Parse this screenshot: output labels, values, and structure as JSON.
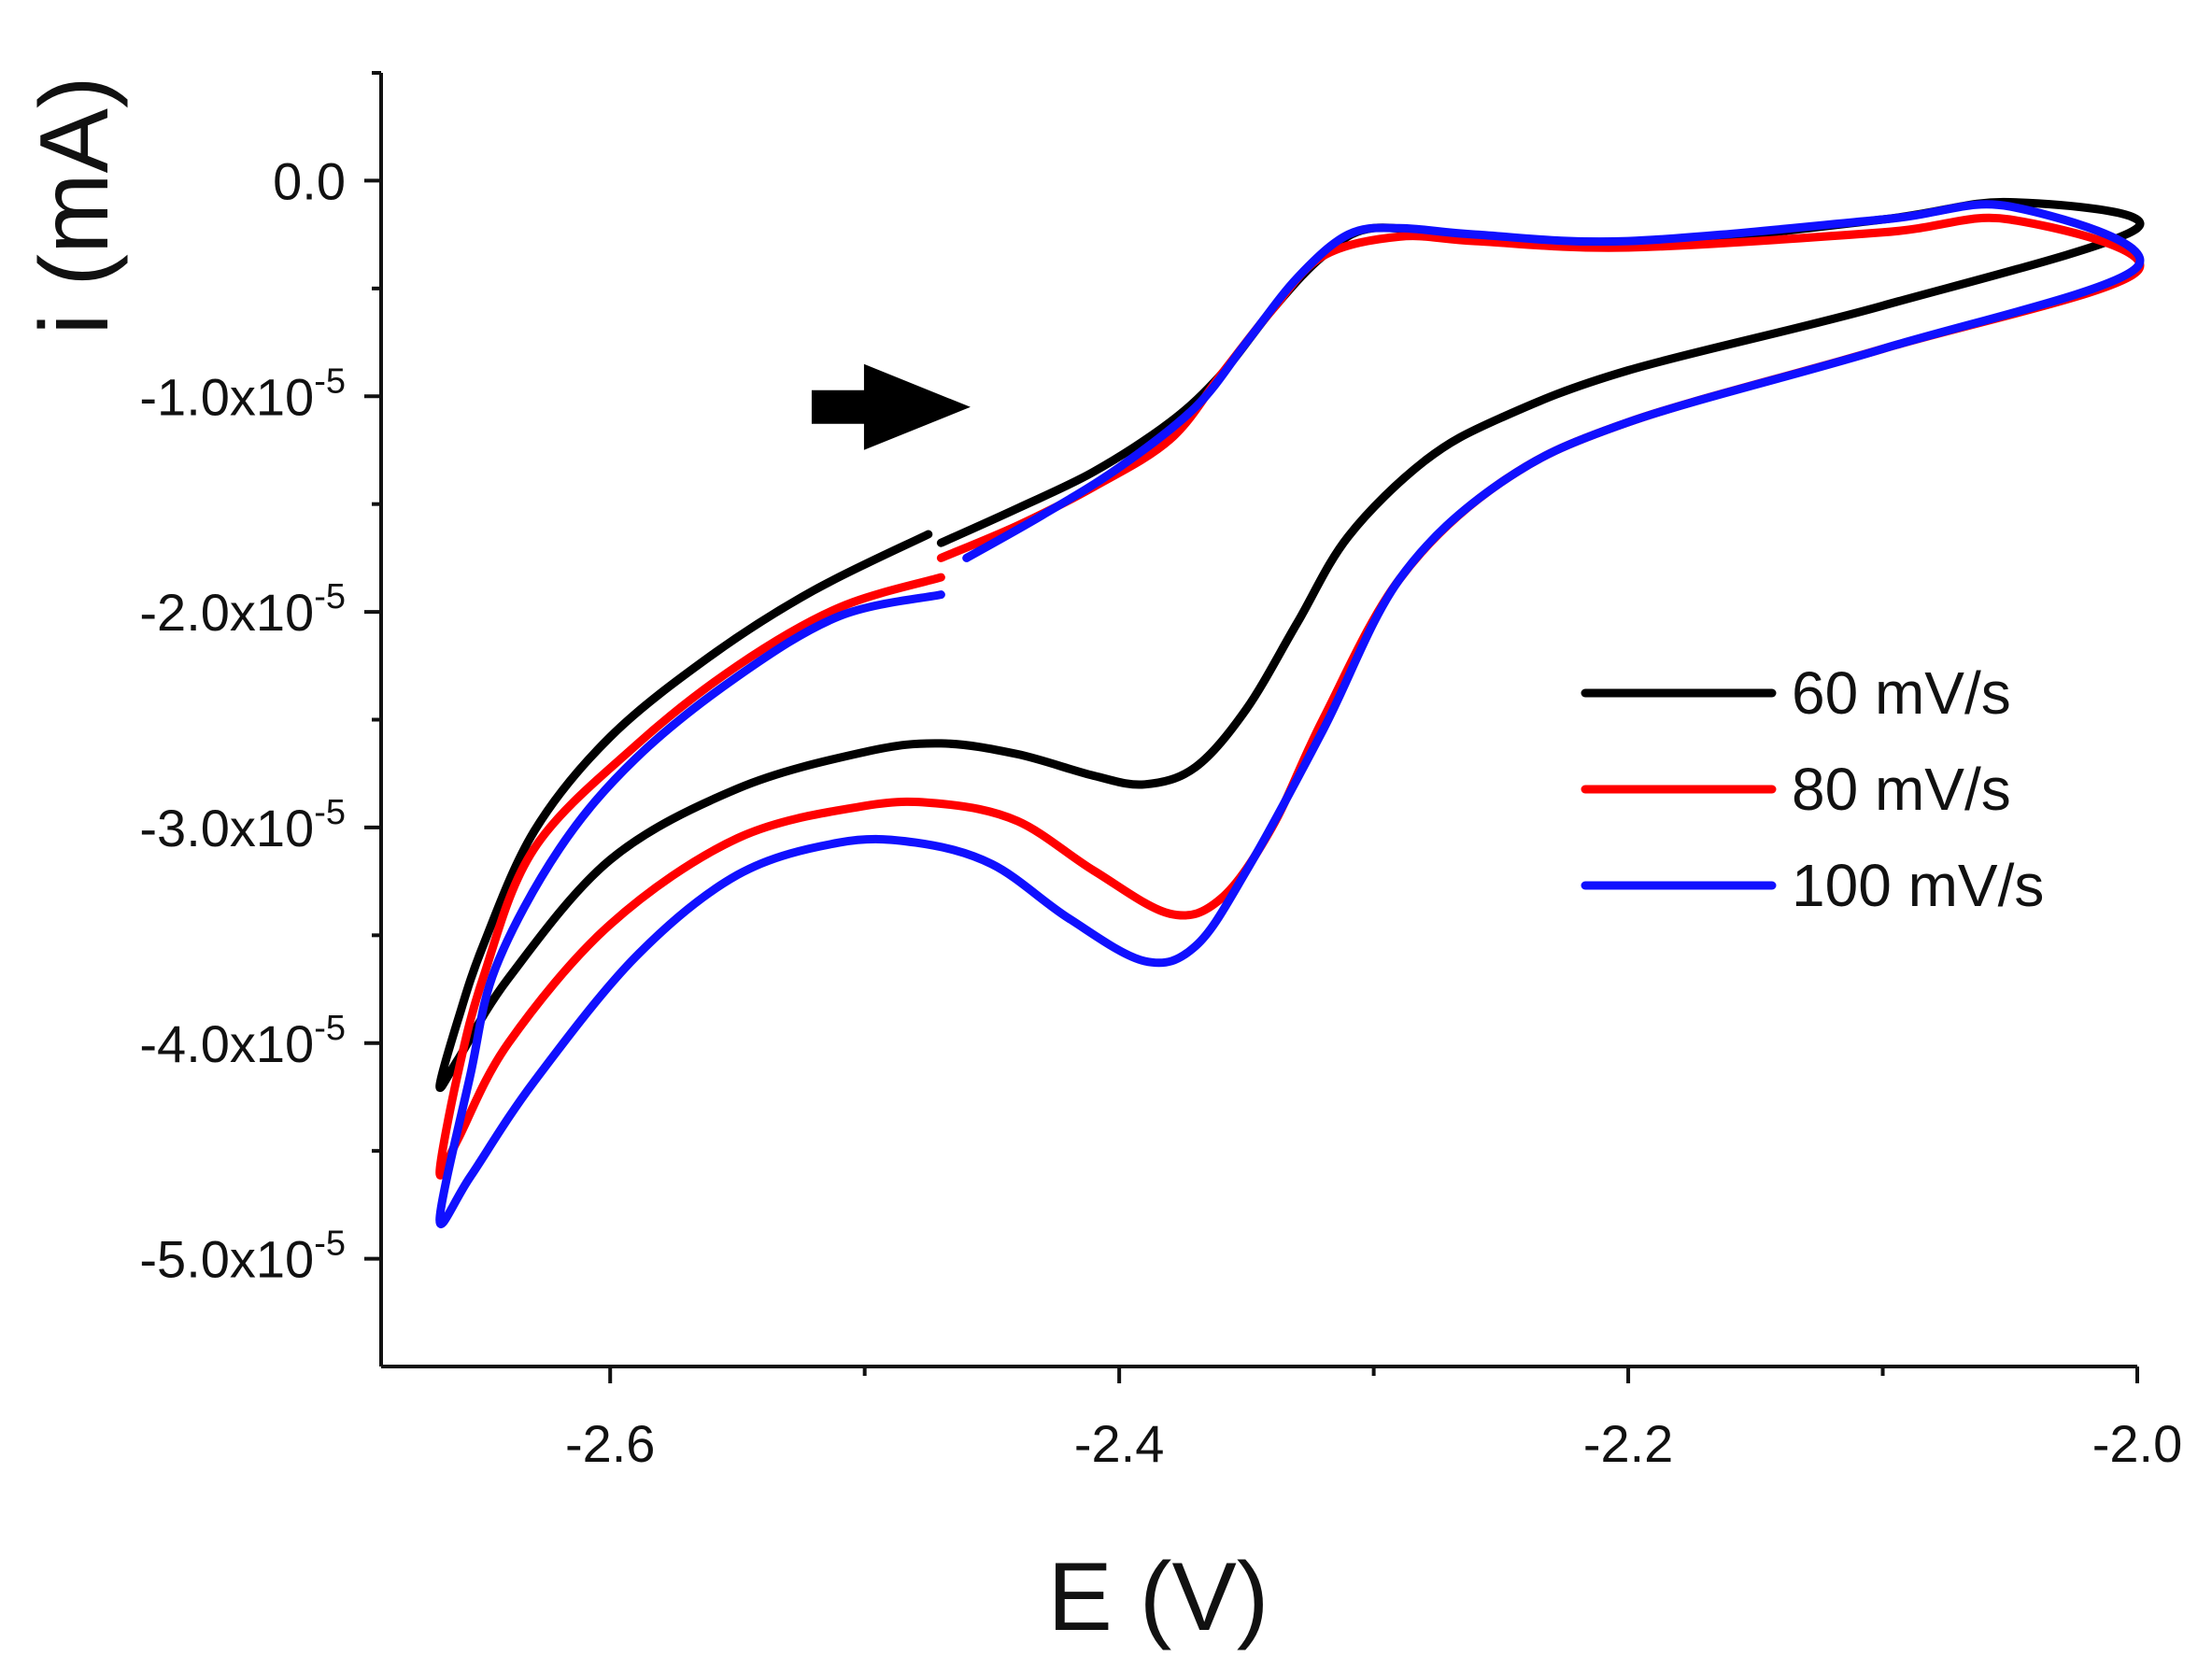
{
  "chart_data": {
    "type": "line",
    "title": "",
    "xlabel": "E (V)",
    "ylabel": "i (mA)",
    "xlim": [
      -2.69,
      -2.0
    ],
    "ylim": [
      -5.5e-05,
      5e-06
    ],
    "x_ticks": [
      {
        "value": -2.6,
        "label": "-2.6"
      },
      {
        "value": -2.4,
        "label": "-2.4"
      },
      {
        "value": -2.2,
        "label": "-2.2"
      },
      {
        "value": -2.0,
        "label": "-2.0"
      }
    ],
    "y_ticks": [
      {
        "value": 0.0,
        "mantissa": "0.0",
        "exponent": ""
      },
      {
        "value": -1e-05,
        "mantissa": "-1.0x10",
        "exponent": "-5"
      },
      {
        "value": -2e-05,
        "mantissa": "-2.0x10",
        "exponent": "-5"
      },
      {
        "value": -3e-05,
        "mantissa": "-3.0x10",
        "exponent": "-5"
      },
      {
        "value": -4e-05,
        "mantissa": "-4.0x10",
        "exponent": "-5"
      },
      {
        "value": -5e-05,
        "mantissa": "-5.0x10",
        "exponent": "-5"
      }
    ],
    "grid": false,
    "legend_position": "right",
    "annotations": [
      {
        "type": "arrow",
        "direction": "right",
        "at_x": -2.49,
        "at_y": -1.05e-05,
        "color": "#000000"
      }
    ],
    "series": [
      {
        "name": "60 mV/s",
        "color": "#000000",
        "points": [
          [
            -2.475,
            -1.64e-05
          ],
          [
            -2.52,
            -1.9e-05
          ],
          [
            -2.56,
            -2.2e-05
          ],
          [
            -2.6,
            -2.58e-05
          ],
          [
            -2.63,
            -3.02e-05
          ],
          [
            -2.65,
            -3.55e-05
          ],
          [
            -2.66,
            -3.9e-05
          ],
          [
            -2.667,
            -4.2e-05
          ],
          [
            -2.66,
            -4.08e-05
          ],
          [
            -2.64,
            -3.7e-05
          ],
          [
            -2.6,
            -3.15e-05
          ],
          [
            -2.55,
            -2.82e-05
          ],
          [
            -2.5,
            -2.65e-05
          ],
          [
            -2.47,
            -2.61e-05
          ],
          [
            -2.44,
            -2.66e-05
          ],
          [
            -2.41,
            -2.76e-05
          ],
          [
            -2.39,
            -2.8e-05
          ],
          [
            -2.37,
            -2.72e-05
          ],
          [
            -2.35,
            -2.45e-05
          ],
          [
            -2.33,
            -2.05e-05
          ],
          [
            -2.31,
            -1.65e-05
          ],
          [
            -2.28,
            -1.3e-05
          ],
          [
            -2.25,
            -1.1e-05
          ],
          [
            -2.2,
            -8.8e-06
          ],
          [
            -2.1,
            -5.8e-06
          ],
          [
            -2.0,
            -2.2e-06
          ],
          [
            -2.05,
            -1e-06
          ],
          [
            -2.1,
            -1.8e-06
          ],
          [
            -2.2,
            -3e-06
          ],
          [
            -2.26,
            -2.7e-06
          ],
          [
            -2.3,
            -2.2e-06
          ],
          [
            -2.32,
            -3.5e-06
          ],
          [
            -2.34,
            -6e-06
          ],
          [
            -2.36,
            -9e-06
          ],
          [
            -2.38,
            -1.12e-05
          ],
          [
            -2.41,
            -1.35e-05
          ],
          [
            -2.44,
            -1.52e-05
          ],
          [
            -2.47,
            -1.68e-05
          ]
        ]
      },
      {
        "name": "80 mV/s",
        "color": "#ff0000",
        "points": [
          [
            -2.47,
            -1.84e-05
          ],
          [
            -2.51,
            -1.98e-05
          ],
          [
            -2.55,
            -2.25e-05
          ],
          [
            -2.59,
            -2.62e-05
          ],
          [
            -2.63,
            -3.1e-05
          ],
          [
            -2.65,
            -3.7e-05
          ],
          [
            -2.66,
            -4.15e-05
          ],
          [
            -2.667,
            -4.6e-05
          ],
          [
            -2.66,
            -4.45e-05
          ],
          [
            -2.64,
            -4e-05
          ],
          [
            -2.6,
            -3.45e-05
          ],
          [
            -2.55,
            -3.05e-05
          ],
          [
            -2.5,
            -2.9e-05
          ],
          [
            -2.47,
            -2.89e-05
          ],
          [
            -2.44,
            -2.97e-05
          ],
          [
            -2.41,
            -3.2e-05
          ],
          [
            -2.38,
            -3.4e-05
          ],
          [
            -2.36,
            -3.33e-05
          ],
          [
            -2.34,
            -3e-05
          ],
          [
            -2.32,
            -2.5e-05
          ],
          [
            -2.29,
            -1.85e-05
          ],
          [
            -2.25,
            -1.4e-05
          ],
          [
            -2.2,
            -1.12e-05
          ],
          [
            -2.1,
            -7.8e-06
          ],
          [
            -2.0,
            -4.2e-06
          ],
          [
            -2.05,
            -1.8e-06
          ],
          [
            -2.1,
            -2.4e-06
          ],
          [
            -2.2,
            -3.1e-06
          ],
          [
            -2.26,
            -2.8e-06
          ],
          [
            -2.29,
            -2.6e-06
          ],
          [
            -2.32,
            -3.5e-06
          ],
          [
            -2.34,
            -6e-06
          ],
          [
            -2.36,
            -9e-06
          ],
          [
            -2.38,
            -1.2e-05
          ],
          [
            -2.41,
            -1.42e-05
          ],
          [
            -2.44,
            -1.6e-05
          ],
          [
            -2.47,
            -1.75e-05
          ]
        ]
      },
      {
        "name": "100 mV/s",
        "color": "#1010ff",
        "points": [
          [
            -2.47,
            -1.92e-05
          ],
          [
            -2.51,
            -2.02e-05
          ],
          [
            -2.55,
            -2.3e-05
          ],
          [
            -2.59,
            -2.68e-05
          ],
          [
            -2.62,
            -3.1e-05
          ],
          [
            -2.645,
            -3.65e-05
          ],
          [
            -2.655,
            -4.15e-05
          ],
          [
            -2.667,
            -4.82e-05
          ],
          [
            -2.655,
            -4.62e-05
          ],
          [
            -2.63,
            -4.18e-05
          ],
          [
            -2.59,
            -3.6e-05
          ],
          [
            -2.55,
            -3.22e-05
          ],
          [
            -2.51,
            -3.07e-05
          ],
          [
            -2.48,
            -3.07e-05
          ],
          [
            -2.45,
            -3.17e-05
          ],
          [
            -2.42,
            -3.42e-05
          ],
          [
            -2.39,
            -3.62e-05
          ],
          [
            -2.37,
            -3.55e-05
          ],
          [
            -2.35,
            -3.2e-05
          ],
          [
            -2.32,
            -2.55e-05
          ],
          [
            -2.29,
            -1.85e-05
          ],
          [
            -2.25,
            -1.4e-05
          ],
          [
            -2.2,
            -1.12e-05
          ],
          [
            -2.1,
            -7.8e-06
          ],
          [
            -2.0,
            -4e-06
          ],
          [
            -2.05,
            -1.2e-06
          ],
          [
            -2.1,
            -1.8e-06
          ],
          [
            -2.2,
            -2.8e-06
          ],
          [
            -2.26,
            -2.5e-06
          ],
          [
            -2.29,
            -2.2e-06
          ],
          [
            -2.31,
            -2.5e-06
          ],
          [
            -2.33,
            -4.5e-06
          ],
          [
            -2.35,
            -7.5e-06
          ],
          [
            -2.37,
            -1.05e-05
          ],
          [
            -2.4,
            -1.33e-05
          ],
          [
            -2.43,
            -1.55e-05
          ],
          [
            -2.46,
            -1.75e-05
          ]
        ]
      }
    ]
  }
}
